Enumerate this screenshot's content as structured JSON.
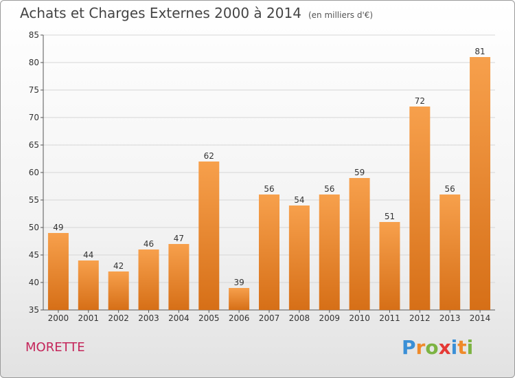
{
  "title": "Achats et Charges Externes 2000 à 2014",
  "unit_label": "(en milliers d'€)",
  "commune": "MORETTE",
  "logo": {
    "letters": [
      "P",
      "r",
      "o",
      "x",
      "i",
      "t",
      "i"
    ],
    "colors": [
      "#3a8fd6",
      "#ef8a2a",
      "#7cb342",
      "#e53935",
      "#3a8fd6",
      "#ef8a2a",
      "#7cb342"
    ]
  },
  "colors": {
    "bar_light": "#f7a04c",
    "bar_dark": "#d66f17",
    "accent": "#c4255a"
  },
  "chart_data": {
    "type": "bar",
    "categories": [
      "2000",
      "2001",
      "2002",
      "2003",
      "2004",
      "2005",
      "2006",
      "2007",
      "2008",
      "2009",
      "2010",
      "2011",
      "2012",
      "2013",
      "2014"
    ],
    "values": [
      49,
      44,
      42,
      46,
      47,
      62,
      39,
      56,
      54,
      56,
      59,
      51,
      72,
      56,
      81
    ],
    "ylim": [
      35,
      85
    ],
    "yticks": [
      35,
      40,
      45,
      50,
      55,
      60,
      65,
      70,
      75,
      80,
      85
    ],
    "grid": true
  }
}
